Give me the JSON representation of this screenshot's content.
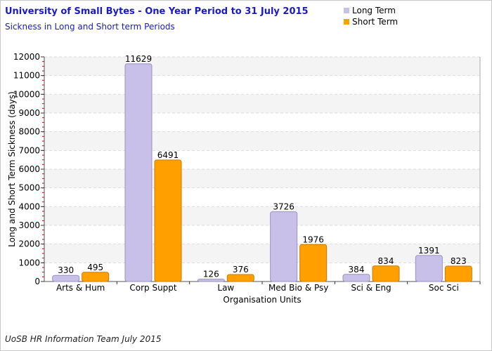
{
  "chart_data": {
    "type": "bar",
    "title": "University of Small Bytes - One Year Period to 31 July 2015",
    "subtitle": "Sickness in Long and Short term Periods",
    "xlabel": "Organisation Units",
    "ylabel": "Long and Short Term Sickness (days)",
    "ylim": [
      0,
      12000
    ],
    "yticks": [
      0,
      1000,
      2000,
      3000,
      4000,
      5000,
      6000,
      7000,
      8000,
      9000,
      10000,
      11000,
      12000
    ],
    "categories": [
      "Arts & Hum",
      "Corp Suppt",
      "Law",
      "Med Bio & Psy",
      "Sci & Eng",
      "Soc Sci"
    ],
    "series": [
      {
        "name": "Long Term",
        "color": "#c8c0e8",
        "values": [
          330,
          11629,
          126,
          3726,
          384,
          1391
        ]
      },
      {
        "name": "Short Term",
        "color": "#ff9f00",
        "values": [
          495,
          6491,
          376,
          1976,
          834,
          823
        ]
      }
    ],
    "grid": true,
    "legend_position": "top-right",
    "footer": "UoSB HR Information Team July 2015"
  }
}
